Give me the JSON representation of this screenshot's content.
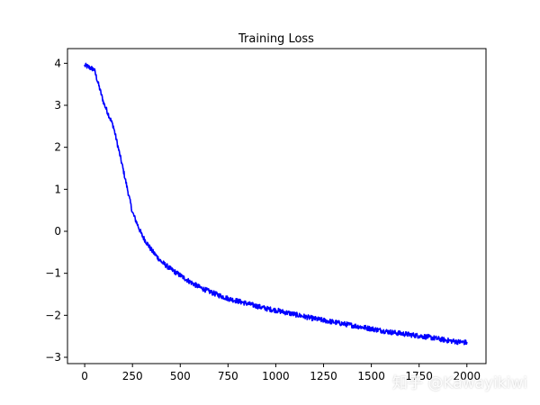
{
  "chart_data": {
    "type": "line",
    "title": "Training Loss",
    "xlabel": "",
    "ylabel": "",
    "xlim": [
      -90,
      2100
    ],
    "ylim": [
      -3.15,
      4.35
    ],
    "grid": false,
    "xticks": [
      0,
      250,
      500,
      750,
      1000,
      1250,
      1500,
      1750,
      2000
    ],
    "xtick_labels": [
      "0",
      "250",
      "500",
      "750",
      "1000",
      "1250",
      "1500",
      "1750",
      "2000"
    ],
    "yticks": [
      -3,
      -2,
      -1,
      0,
      1,
      2,
      3,
      4
    ],
    "ytick_labels": [
      "−3",
      "−2",
      "−1",
      "0",
      "1",
      "2",
      "3",
      "4"
    ],
    "series": [
      {
        "color": "#0000ff",
        "noise": 0.06,
        "x": [
          0,
          50,
          100,
          150,
          200,
          250,
          300,
          350,
          400,
          450,
          500,
          550,
          600,
          650,
          700,
          750,
          800,
          850,
          900,
          950,
          1000,
          1050,
          1100,
          1150,
          1200,
          1250,
          1300,
          1350,
          1400,
          1450,
          1500,
          1550,
          1600,
          1650,
          1700,
          1750,
          1800,
          1850,
          1900,
          1950,
          2000
        ],
        "values": [
          3.95,
          3.85,
          3.05,
          2.5,
          1.5,
          0.45,
          -0.1,
          -0.45,
          -0.72,
          -0.9,
          -1.05,
          -1.2,
          -1.33,
          -1.43,
          -1.52,
          -1.6,
          -1.66,
          -1.72,
          -1.78,
          -1.84,
          -1.88,
          -1.93,
          -1.98,
          -2.03,
          -2.08,
          -2.12,
          -2.16,
          -2.2,
          -2.24,
          -2.28,
          -2.32,
          -2.36,
          -2.4,
          -2.43,
          -2.46,
          -2.49,
          -2.52,
          -2.56,
          -2.6,
          -2.63,
          -2.65
        ]
      }
    ]
  },
  "watermark": "知乎 @Kawayikiwi"
}
